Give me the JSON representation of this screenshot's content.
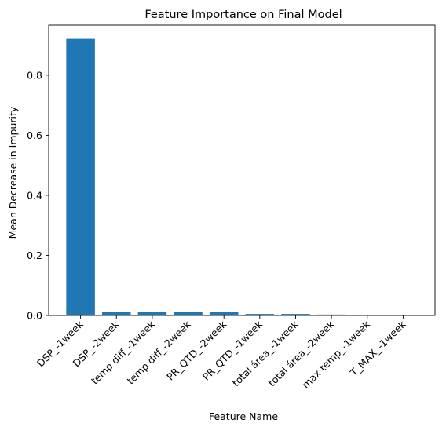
{
  "chart_data": {
    "type": "bar",
    "title": "Feature Importance on Final Model",
    "xlabel": "Feature Name",
    "ylabel": "Mean Decrease in Impurity",
    "categories": [
      "DSP_-1week",
      "DSP_-2week",
      "temp diff_-1week",
      "temp diff_-2week",
      "PR_QTD_-2week",
      "PR_QTD_-1week",
      "total área_-1week",
      "total área_-2week",
      "max temp_-1week",
      "T_MAX_-1week"
    ],
    "values": [
      0.921,
      0.012,
      0.012,
      0.012,
      0.012,
      0.005,
      0.005,
      0.003,
      0.002,
      0.002
    ],
    "ylim": [
      0,
      0.967
    ],
    "yticks": [
      0.0,
      0.2,
      0.4,
      0.6,
      0.8
    ],
    "ytick_labels": [
      "0.0",
      "0.2",
      "0.4",
      "0.6",
      "0.8"
    ],
    "bar_color": "#1f77b4",
    "grid": false,
    "legend": null
  }
}
